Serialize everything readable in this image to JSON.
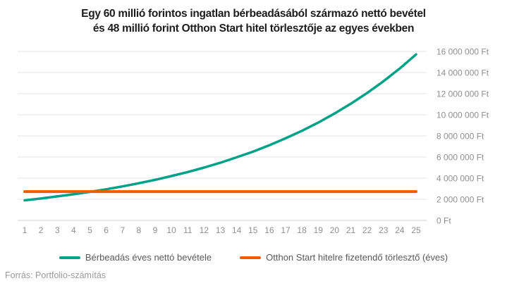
{
  "title": {
    "line1": "Egy 60 millió forintos ingatlan bérbeadásából származó nettó bevétel",
    "line2": "és 48 millió forint Otthon Start hitel törlesztője az egyes években"
  },
  "footer": {
    "source": "Forrás: Portfolio-számítás"
  },
  "chart_data": {
    "type": "line",
    "title": "Egy 60 millió forintos ingatlan bérbeadásából származó nettó bevétel és 48 millió forint Otthon Start hitel törlesztője az egyes években",
    "xlabel": "",
    "ylabel": "",
    "x": [
      1,
      2,
      3,
      4,
      5,
      6,
      7,
      8,
      9,
      10,
      11,
      12,
      13,
      14,
      15,
      16,
      17,
      18,
      19,
      20,
      21,
      22,
      23,
      24,
      25
    ],
    "ylim": [
      0,
      16000000
    ],
    "ytick_step": 2000000,
    "ytick_labels": [
      "0 Ft",
      "2 000 000 Ft",
      "4 000 000 Ft",
      "6 000 000 Ft",
      "8 000 000 Ft",
      "10 000 000 Ft",
      "12 000 000 Ft",
      "14 000 000 Ft",
      "16 000 000 Ft"
    ],
    "grid": true,
    "legend_position": "bottom",
    "series": [
      {
        "name": "Bérbeadás éves nettó bevétele",
        "color": "#00a287",
        "width": 3.5,
        "data_name": "rental-income-line",
        "values": [
          1900000,
          2070000,
          2270000,
          2470000,
          2700000,
          2950000,
          3220000,
          3520000,
          3840000,
          4200000,
          4580000,
          5000000,
          5460000,
          5970000,
          6510000,
          7110000,
          7770000,
          8480000,
          9260000,
          10120000,
          11050000,
          12060000,
          13170000,
          14380000,
          15710000
        ]
      },
      {
        "name": "Otthon Start hitelre fizetendő törlesztő (éves)",
        "color": "#f05c00",
        "width": 4,
        "data_name": "loan-payment-line",
        "values": [
          2730000,
          2730000,
          2730000,
          2730000,
          2730000,
          2730000,
          2730000,
          2730000,
          2730000,
          2730000,
          2730000,
          2730000,
          2730000,
          2730000,
          2730000,
          2730000,
          2730000,
          2730000,
          2730000,
          2730000,
          2730000,
          2730000,
          2730000,
          2730000,
          2730000
        ]
      }
    ],
    "colors": {
      "grid": "#e4e4e4",
      "axis_line": "#cfcfcf",
      "tick_text": "#8f8f8f"
    }
  }
}
